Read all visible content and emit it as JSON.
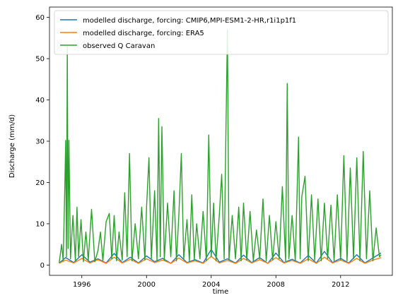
{
  "chart_data": {
    "type": "line",
    "xlabel": "time",
    "ylabel": "Discharge (mm/d)",
    "xlim": [
      1994.0,
      2015.2
    ],
    "ylim": [
      -2.5,
      62.5
    ],
    "xticks": [
      {
        "value": 1996,
        "label": "1996"
      },
      {
        "value": 2000,
        "label": "2000"
      },
      {
        "value": 2004,
        "label": "2004"
      },
      {
        "value": 2008,
        "label": "2008"
      },
      {
        "value": 2012,
        "label": "2012"
      }
    ],
    "yticks": [
      {
        "value": 0,
        "label": "0"
      },
      {
        "value": 10,
        "label": "10"
      },
      {
        "value": 20,
        "label": "20"
      },
      {
        "value": 30,
        "label": "30"
      },
      {
        "value": 40,
        "label": "40"
      },
      {
        "value": 50,
        "label": "50"
      },
      {
        "value": 60,
        "label": "60"
      }
    ],
    "grid": false,
    "legend_position": "top-right",
    "series": [
      {
        "name": "modelled discharge, forcing: CMIP6,MPI-ESM1-2-HR,r1i1p1f1",
        "color": "#1f77b4",
        "x": [
          1994.6,
          1995.0,
          1995.5,
          1996.0,
          1996.5,
          1997.0,
          1997.5,
          1998.0,
          1998.5,
          1999.0,
          1999.5,
          2000.0,
          2000.5,
          2001.0,
          2001.5,
          2002.0,
          2002.5,
          2003.0,
          2003.5,
          2004.0,
          2004.5,
          2005.0,
          2005.5,
          2006.0,
          2006.5,
          2007.0,
          2007.5,
          2008.0,
          2008.5,
          2009.0,
          2009.5,
          2010.0,
          2010.5,
          2011.0,
          2011.5,
          2012.0,
          2012.5,
          2013.0,
          2013.5,
          2014.0,
          2014.5
        ],
        "y": [
          0.5,
          1.8,
          0.6,
          2.5,
          0.7,
          1.5,
          0.5,
          2.8,
          0.6,
          1.9,
          0.5,
          2.2,
          0.8,
          1.6,
          0.4,
          2.5,
          0.6,
          1.3,
          0.5,
          3.8,
          0.7,
          1.5,
          0.5,
          2.4,
          0.6,
          1.8,
          0.4,
          2.9,
          0.6,
          1.4,
          0.5,
          2.3,
          0.5,
          3.3,
          0.6,
          1.6,
          0.5,
          2.5,
          0.5,
          1.7,
          2.9
        ]
      },
      {
        "name": "modelled discharge, forcing: ERA5",
        "color": "#ff7f0e",
        "x": [
          1994.6,
          1995.0,
          1995.5,
          1996.0,
          1996.5,
          1997.0,
          1997.5,
          1998.0,
          1998.5,
          1999.0,
          1999.5,
          2000.0,
          2000.5,
          2001.0,
          2001.5,
          2002.0,
          2002.5,
          2003.0,
          2003.5,
          2004.0,
          2004.5,
          2005.0,
          2005.5,
          2006.0,
          2006.5,
          2007.0,
          2007.5,
          2008.0,
          2008.5,
          2009.0,
          2009.5,
          2010.0,
          2010.5,
          2011.0,
          2011.5,
          2012.0,
          2012.5,
          2013.0,
          2013.5,
          2014.0,
          2014.5
        ],
        "y": [
          0.4,
          1.2,
          0.5,
          1.6,
          0.5,
          1.3,
          0.4,
          1.9,
          0.5,
          1.4,
          0.4,
          1.5,
          0.6,
          1.2,
          0.4,
          1.7,
          0.5,
          1.0,
          0.4,
          2.1,
          0.5,
          1.1,
          0.4,
          1.6,
          0.5,
          1.3,
          0.4,
          1.8,
          0.5,
          1.1,
          0.4,
          1.5,
          0.4,
          1.9,
          0.5,
          1.2,
          0.4,
          1.6,
          0.4,
          1.2,
          1.8
        ]
      },
      {
        "name": "observed Q Caravan",
        "color": "#2ca02c",
        "x": [
          1994.6,
          1994.75,
          1994.85,
          1994.95,
          1995.0,
          1995.05,
          1995.1,
          1995.15,
          1995.2,
          1995.3,
          1995.45,
          1995.6,
          1995.7,
          1995.8,
          1995.95,
          1996.1,
          1996.25,
          1996.4,
          1996.6,
          1996.8,
          1997.0,
          1997.15,
          1997.3,
          1997.5,
          1997.7,
          1997.85,
          1998.0,
          1998.15,
          1998.3,
          1998.5,
          1998.65,
          1998.8,
          1998.95,
          1999.1,
          1999.3,
          1999.5,
          1999.7,
          1999.9,
          2000.0,
          2000.15,
          2000.3,
          2000.5,
          2000.65,
          2000.75,
          2000.85,
          2000.95,
          2001.1,
          2001.3,
          2001.5,
          2001.7,
          2001.85,
          2002.0,
          2002.15,
          2002.3,
          2002.5,
          2002.65,
          2002.8,
          2002.95,
          2003.1,
          2003.3,
          2003.5,
          2003.7,
          2003.85,
          2004.0,
          2004.15,
          2004.3,
          2004.5,
          2004.65,
          2004.8,
          2004.9,
          2005.0,
          2005.1,
          2005.3,
          2005.5,
          2005.7,
          2005.85,
          2006.0,
          2006.2,
          2006.4,
          2006.6,
          2006.8,
          2007.0,
          2007.2,
          2007.4,
          2007.6,
          2007.8,
          2008.0,
          2008.2,
          2008.4,
          2008.6,
          2008.7,
          2008.8,
          2009.0,
          2009.2,
          2009.4,
          2009.5,
          2009.6,
          2009.8,
          2010.0,
          2010.2,
          2010.4,
          2010.6,
          2010.8,
          2011.0,
          2011.2,
          2011.4,
          2011.6,
          2011.8,
          2012.0,
          2012.2,
          2012.4,
          2012.6,
          2012.8,
          2013.0,
          2013.2,
          2013.4,
          2013.6,
          2013.8,
          2014.0,
          2014.2,
          2014.4,
          2014.5
        ],
        "y": [
          0.5,
          5.0,
          1.0,
          19.0,
          30.2,
          2.0,
          53.0,
          4.0,
          30.2,
          1.5,
          12.0,
          1.0,
          14.0,
          2.0,
          11.0,
          0.8,
          8.0,
          1.2,
          13.5,
          0.8,
          3.5,
          8.0,
          1.0,
          10.5,
          12.5,
          1.5,
          12.0,
          1.0,
          8.0,
          1.2,
          17.5,
          2.0,
          27.0,
          1.0,
          10.0,
          1.5,
          14.0,
          1.2,
          14.0,
          26.0,
          1.5,
          18.0,
          1.0,
          35.5,
          2.0,
          33.5,
          1.2,
          15.0,
          2.0,
          18.0,
          1.0,
          12.0,
          27.0,
          1.5,
          11.0,
          1.0,
          17.0,
          1.2,
          10.0,
          1.5,
          13.0,
          1.0,
          31.5,
          2.0,
          15.0,
          1.0,
          12.0,
          22.0,
          1.5,
          30.0,
          57.0,
          1.2,
          12.0,
          1.5,
          14.0,
          1.0,
          15.0,
          1.2,
          13.0,
          1.0,
          8.5,
          1.5,
          16.0,
          1.0,
          12.0,
          1.2,
          10.5,
          1.5,
          19.0,
          1.0,
          44.0,
          1.5,
          12.0,
          1.0,
          31.0,
          1.5,
          16.5,
          21.5,
          1.0,
          17.0,
          1.2,
          16.0,
          1.0,
          15.0,
          1.5,
          14.5,
          1.0,
          17.0,
          1.2,
          26.5,
          1.0,
          23.5,
          1.5,
          26.0,
          1.0,
          27.5,
          1.5,
          18.0,
          1.0,
          9.0,
          2.0,
          2.5
        ]
      }
    ]
  }
}
